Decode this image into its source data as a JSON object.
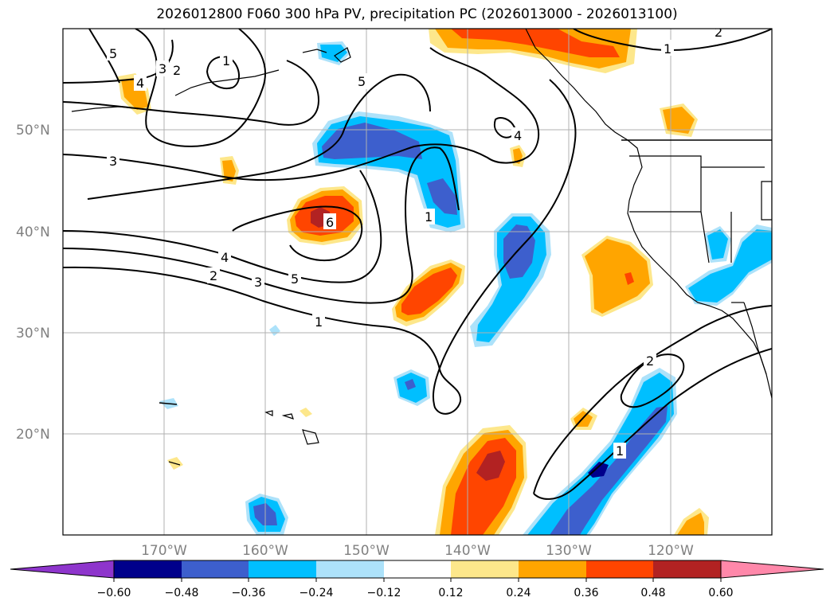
{
  "map": {
    "title": "2026012800 F060 300 hPa PV, precipitation PC (2026013000 - 2026013100)",
    "lat_labels": [
      "50°N",
      "40°N",
      "30°N",
      "20°N"
    ],
    "lon_labels": [
      "170°W",
      "160°W",
      "150°W",
      "140°W",
      "130°W",
      "120°W"
    ],
    "contour_labels": [
      "5",
      "4",
      "3",
      "2",
      "1",
      "5",
      "4",
      "3",
      "6",
      "4",
      "2",
      "3",
      "5",
      "1",
      "1",
      "2",
      "1",
      "1",
      "2"
    ]
  },
  "colorbar": {
    "tick_labels": [
      "−0.60",
      "−0.48",
      "−0.36",
      "−0.24",
      "−0.12",
      "0.12",
      "0.24",
      "0.36",
      "0.48",
      "0.60"
    ],
    "colors": [
      "#8e35cc",
      "#00008b",
      "#3d5fcd",
      "#00bfff",
      "#ade2fa",
      "#ffffff",
      "#fde78b",
      "#ffa500",
      "#ff4500",
      "#b22222",
      "#ff88aa"
    ]
  },
  "colors": {
    "grid": "#b0b0b0",
    "contour": "#000000",
    "lightyellow": "#fde78b",
    "orange": "#ffa500",
    "redorange": "#ff4500",
    "darkred": "#b22222",
    "lightblue": "#ade2fa",
    "skyblue": "#00bfff",
    "royalblue": "#3d5fcd",
    "navy": "#00008b"
  }
}
